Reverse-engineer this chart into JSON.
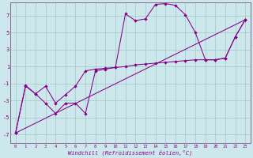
{
  "xlabel": "Windchill (Refroidissement éolien,°C)",
  "bg_color": "#cce8ec",
  "grid_color": "#aacccc",
  "line_color": "#880088",
  "spine_color": "#886688",
  "ylim": [
    -8,
    8.5
  ],
  "xlim": [
    -0.5,
    23.5
  ],
  "yticks": [
    -7,
    -5,
    -3,
    -1,
    1,
    3,
    5,
    7
  ],
  "xticks": [
    0,
    1,
    2,
    3,
    4,
    5,
    6,
    7,
    8,
    9,
    10,
    11,
    12,
    13,
    14,
    15,
    16,
    17,
    18,
    19,
    20,
    21,
    22,
    23
  ],
  "series1_x": [
    0,
    1,
    2,
    3,
    4,
    5,
    6,
    7,
    8,
    9,
    10,
    11,
    12,
    13,
    14,
    15,
    16,
    17,
    18,
    19,
    20,
    21,
    22,
    23
  ],
  "series1_y": [
    -6.8,
    -1.2,
    -2.2,
    -3.3,
    -4.5,
    -3.3,
    -3.3,
    -4.5,
    0.5,
    0.7,
    0.9,
    7.2,
    6.4,
    6.6,
    8.3,
    8.4,
    8.2,
    7.1,
    5.0,
    1.8,
    1.8,
    2.0,
    4.5,
    6.5
  ],
  "series2_x": [
    0,
    1,
    2,
    3,
    4,
    5,
    6,
    7,
    8,
    9,
    10,
    11,
    12,
    13,
    14,
    15,
    16,
    17,
    18,
    19,
    20,
    21,
    22,
    23
  ],
  "series2_y": [
    -6.8,
    -1.3,
    -2.2,
    -1.3,
    -3.3,
    -2.3,
    -1.3,
    0.5,
    0.7,
    0.8,
    0.9,
    1.0,
    1.2,
    1.3,
    1.4,
    1.5,
    1.6,
    1.7,
    1.8,
    1.8,
    1.8,
    2.0,
    4.5,
    6.5
  ],
  "series3_x": [
    0,
    23
  ],
  "series3_y": [
    -6.8,
    6.5
  ]
}
